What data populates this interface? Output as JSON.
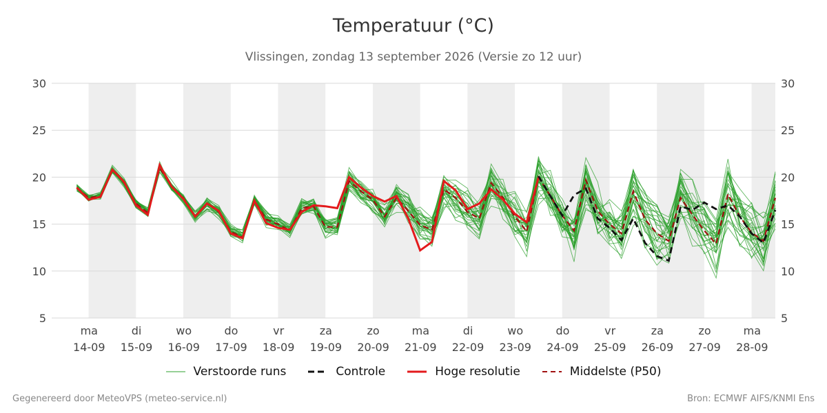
{
  "title": "Temperatuur (°C)",
  "subtitle": "Vlissingen, zondag 13 september 2026 (Versie zo 12 uur)",
  "footer": {
    "left": "Gegenereerd door MeteoVPS (meteo-service.nl)",
    "right": "Bron: ECMWF AIFS/KNMI Ens"
  },
  "legend": [
    {
      "label": "Verstoorde runs",
      "color": "#2ca02c",
      "style": "thin-solid"
    },
    {
      "label": "Controle",
      "color": "#111111",
      "style": "dashed"
    },
    {
      "label": "Hoge resolutie",
      "color": "#e31a1c",
      "style": "solid"
    },
    {
      "label": "Middelste (P50)",
      "color": "#a01010",
      "style": "dashed"
    }
  ],
  "chart_data": {
    "type": "line",
    "ylim": [
      5,
      30
    ],
    "yticks": [
      5,
      10,
      15,
      20,
      25,
      30
    ],
    "xlim": [
      -0.78,
      14.5
    ],
    "grid": true,
    "legend_position": "bottom",
    "x_ticks": [
      {
        "day": "ma",
        "date": "14-09"
      },
      {
        "day": "di",
        "date": "15-09"
      },
      {
        "day": "wo",
        "date": "16-09"
      },
      {
        "day": "do",
        "date": "17-09"
      },
      {
        "day": "vr",
        "date": "18-09"
      },
      {
        "day": "za",
        "date": "19-09"
      },
      {
        "day": "zo",
        "date": "20-09"
      },
      {
        "day": "ma",
        "date": "21-09"
      },
      {
        "day": "di",
        "date": "22-09"
      },
      {
        "day": "wo",
        "date": "23-09"
      },
      {
        "day": "do",
        "date": "24-09"
      },
      {
        "day": "vr",
        "date": "25-09"
      },
      {
        "day": "za",
        "date": "26-09"
      },
      {
        "day": "zo",
        "date": "27-09"
      },
      {
        "day": "ma",
        "date": "28-09"
      }
    ],
    "x_step": 0.25,
    "x_start": -0.25,
    "colors": {
      "ensemble": "#2ca02c",
      "control": "#111111",
      "hires": "#e31a1c",
      "median": "#a01010",
      "band": "#eeeeee"
    },
    "hires": [
      18.9,
      17.6,
      17.9,
      20.8,
      19.5,
      17.0,
      16.0,
      21.3,
      19.0,
      17.7,
      15.8,
      17.2,
      16.4,
      14.0,
      13.5,
      17.5,
      15.1,
      14.6,
      14.4,
      16.3,
      17.0,
      16.9,
      16.7,
      20.0,
      18.9,
      18.0,
      17.4,
      18.0,
      15.6,
      12.2,
      13.1,
      19.6,
      18.6,
      16.6,
      17.2,
      18.7,
      17.6,
      16.1,
      15.2,
      20.0
    ],
    "control": [
      null,
      null,
      null,
      null,
      null,
      null,
      null,
      null,
      null,
      null,
      null,
      null,
      null,
      null,
      null,
      null,
      null,
      null,
      null,
      null,
      null,
      null,
      null,
      null,
      null,
      null,
      null,
      null,
      null,
      null,
      null,
      null,
      null,
      null,
      null,
      null,
      null,
      null,
      null,
      20.1,
      18.0,
      15.9,
      18.1,
      18.8,
      15.6,
      14.6,
      13.3,
      15.6,
      13.0,
      11.6,
      11.1,
      16.9,
      16.5,
      17.3,
      16.6,
      17.0,
      15.8,
      14.0,
      13.0,
      16.5
    ],
    "median": [
      18.9,
      17.8,
      18.0,
      20.8,
      19.4,
      17.2,
      16.2,
      21.0,
      19.0,
      17.8,
      15.8,
      17.2,
      16.3,
      14.2,
      13.6,
      17.5,
      15.5,
      15.0,
      14.3,
      16.7,
      16.9,
      14.7,
      14.7,
      19.6,
      18.5,
      17.6,
      15.8,
      17.8,
      16.4,
      14.9,
      14.4,
      18.7,
      17.8,
      16.3,
      15.6,
      19.4,
      17.8,
      15.8,
      14.2,
      20.0,
      18.0,
      15.9,
      14.3,
      19.7,
      16.4,
      15.0,
      14.0,
      18.5,
      15.5,
      14.0,
      13.2,
      17.8,
      16.0,
      14.3,
      12.9,
      18.2,
      15.8,
      14.1,
      13.2,
      17.8
    ],
    "ensemble_count": 30,
    "ensemble_spread": [
      0.5,
      0.5,
      0.6,
      0.5,
      0.5,
      0.6,
      0.6,
      0.7,
      0.7,
      0.7,
      0.7,
      0.8,
      0.8,
      0.8,
      0.9,
      0.9,
      1.0,
      1.0,
      1.0,
      1.1,
      1.1,
      1.2,
      1.2,
      1.3,
      1.4,
      1.5,
      1.6,
      1.8,
      2.0,
      2.1,
      2.2,
      2.4,
      2.5,
      2.6,
      2.7,
      2.8,
      2.9,
      3.0,
      3.0,
      3.1,
      3.2,
      3.3,
      3.3,
      3.4,
      3.5,
      3.5,
      3.6,
      3.6,
      3.7,
      3.7,
      3.8,
      3.8,
      3.9,
      3.9,
      4.0,
      4.0,
      4.1,
      4.1,
      4.2,
      4.2
    ],
    "ensemble_seed": 7
  }
}
